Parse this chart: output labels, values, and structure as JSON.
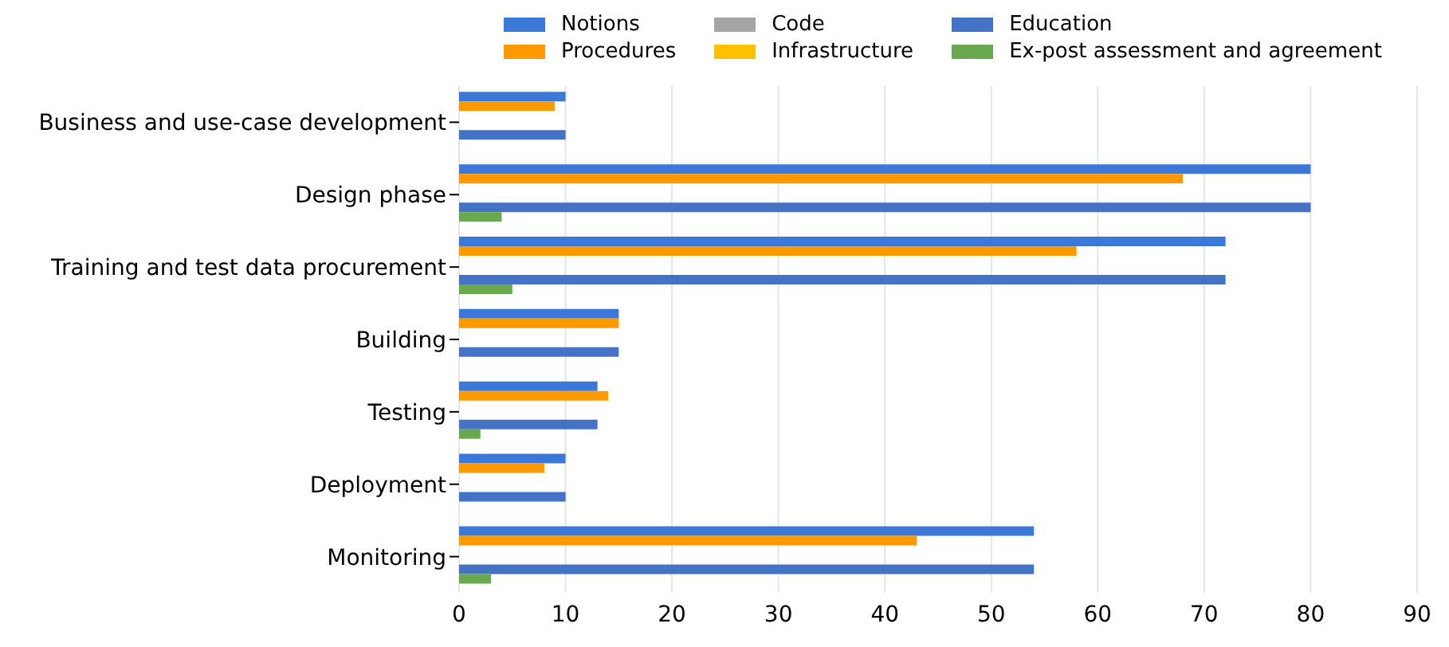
{
  "chart_data": {
    "type": "bar",
    "orientation": "horizontal",
    "categories": [
      "Business and use-case development",
      "Design phase",
      "Training and test data procurement",
      "Building",
      "Testing",
      "Deployment",
      "Monitoring"
    ],
    "series": [
      {
        "name": "Notions",
        "color": "#3c78d8",
        "values": [
          10,
          80,
          72,
          15,
          13,
          10,
          54
        ]
      },
      {
        "name": "Procedures",
        "color": "#ff9900",
        "values": [
          9,
          68,
          58,
          15,
          14,
          8,
          43
        ]
      },
      {
        "name": "Code",
        "color": "#a5a5a5",
        "values": [
          0,
          0,
          0,
          0,
          0,
          0,
          0
        ]
      },
      {
        "name": "Infrastructure",
        "color": "#ffc000",
        "values": [
          0,
          0,
          0,
          0,
          0,
          0,
          0
        ]
      },
      {
        "name": "Education",
        "color": "#4472c4",
        "values": [
          10,
          80,
          72,
          15,
          13,
          10,
          54
        ]
      },
      {
        "name": "Ex-post assessment and agreement",
        "color": "#6aa84f",
        "values": [
          0,
          4,
          5,
          0,
          2,
          0,
          3
        ]
      }
    ],
    "xlim": [
      0,
      90
    ],
    "xticks": [
      0,
      10,
      20,
      30,
      40,
      50,
      60,
      70,
      80,
      90
    ],
    "grid": "x",
    "legend": "top"
  }
}
